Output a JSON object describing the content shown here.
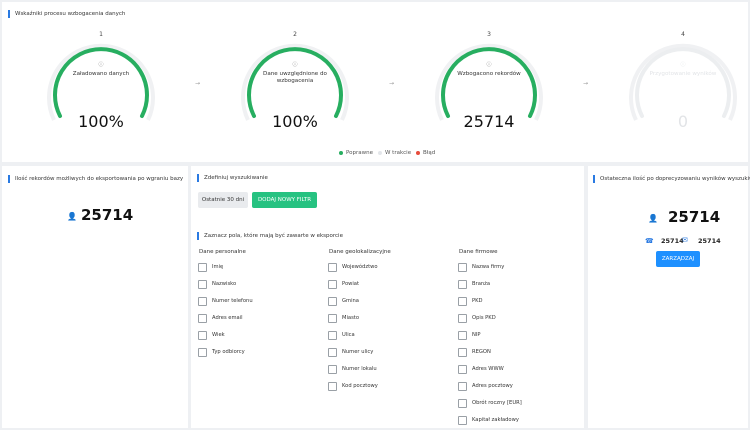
{
  "top": {
    "title": "Wskaźniki procesu wzbogacenia danych",
    "steps": [
      {
        "num": "1",
        "label": "Załadowano danych",
        "value": "100%",
        "progress": 1.0
      },
      {
        "num": "2",
        "label": "Dane uwzględnione do wzbogacenia",
        "value": "100%",
        "progress": 1.0
      },
      {
        "num": "3",
        "label": "Wzbogacono rekordów",
        "value": "25714",
        "progress": 1.0
      },
      {
        "num": "4",
        "label": "Przygotowanie wyników",
        "value": "0",
        "progress": 0
      }
    ],
    "legend": {
      "ok": "Poprawne",
      "progress": "W trakcie",
      "error": "Błąd"
    },
    "colors": {
      "ok": "#27ae60",
      "progress": "#e3e6ea",
      "error": "#e74c3c"
    }
  },
  "left": {
    "title": "Ilość rekordów możliwych do eksportowania po wgraniu bazy",
    "count": "25714"
  },
  "mid": {
    "filter_title": "Zdefiniuj wyszukiwanie",
    "btn_last30": "Ostatnie 30 dni",
    "btn_add_filter": "DODAJ NOWY FILTR",
    "fields_title": "Zaznacz pola, które mają być zawarte w eksporcie",
    "columns": [
      {
        "head": "Dane personalne",
        "items": [
          "Imię",
          "Nazwisko",
          "Numer telefonu",
          "Adres email",
          "Wiek",
          "Typ odbiorcy"
        ]
      },
      {
        "head": "Dane geolokalizacyjne",
        "items": [
          "Województwo",
          "Powiat",
          "Gmina",
          "Miasto",
          "Ulica",
          "Numer ulicy",
          "Numer lokalu",
          "Kod pocztowy"
        ]
      },
      {
        "head": "Dane firmowe",
        "items": [
          "Nazwa firmy",
          "Branża",
          "PKD",
          "Opis PKD",
          "NIP",
          "REGON",
          "Adres WWW",
          "Adres pocztowy",
          "Obrót roczny [EUR]",
          "Kapitał zakładowy"
        ]
      }
    ]
  },
  "right": {
    "title": "Ostateczna ilość po doprecyzowaniu wyników wyszukiwania",
    "count": "25714",
    "phone_count": "25714",
    "email_count": "25714",
    "manage_btn": "ZARZĄDZAJ"
  }
}
